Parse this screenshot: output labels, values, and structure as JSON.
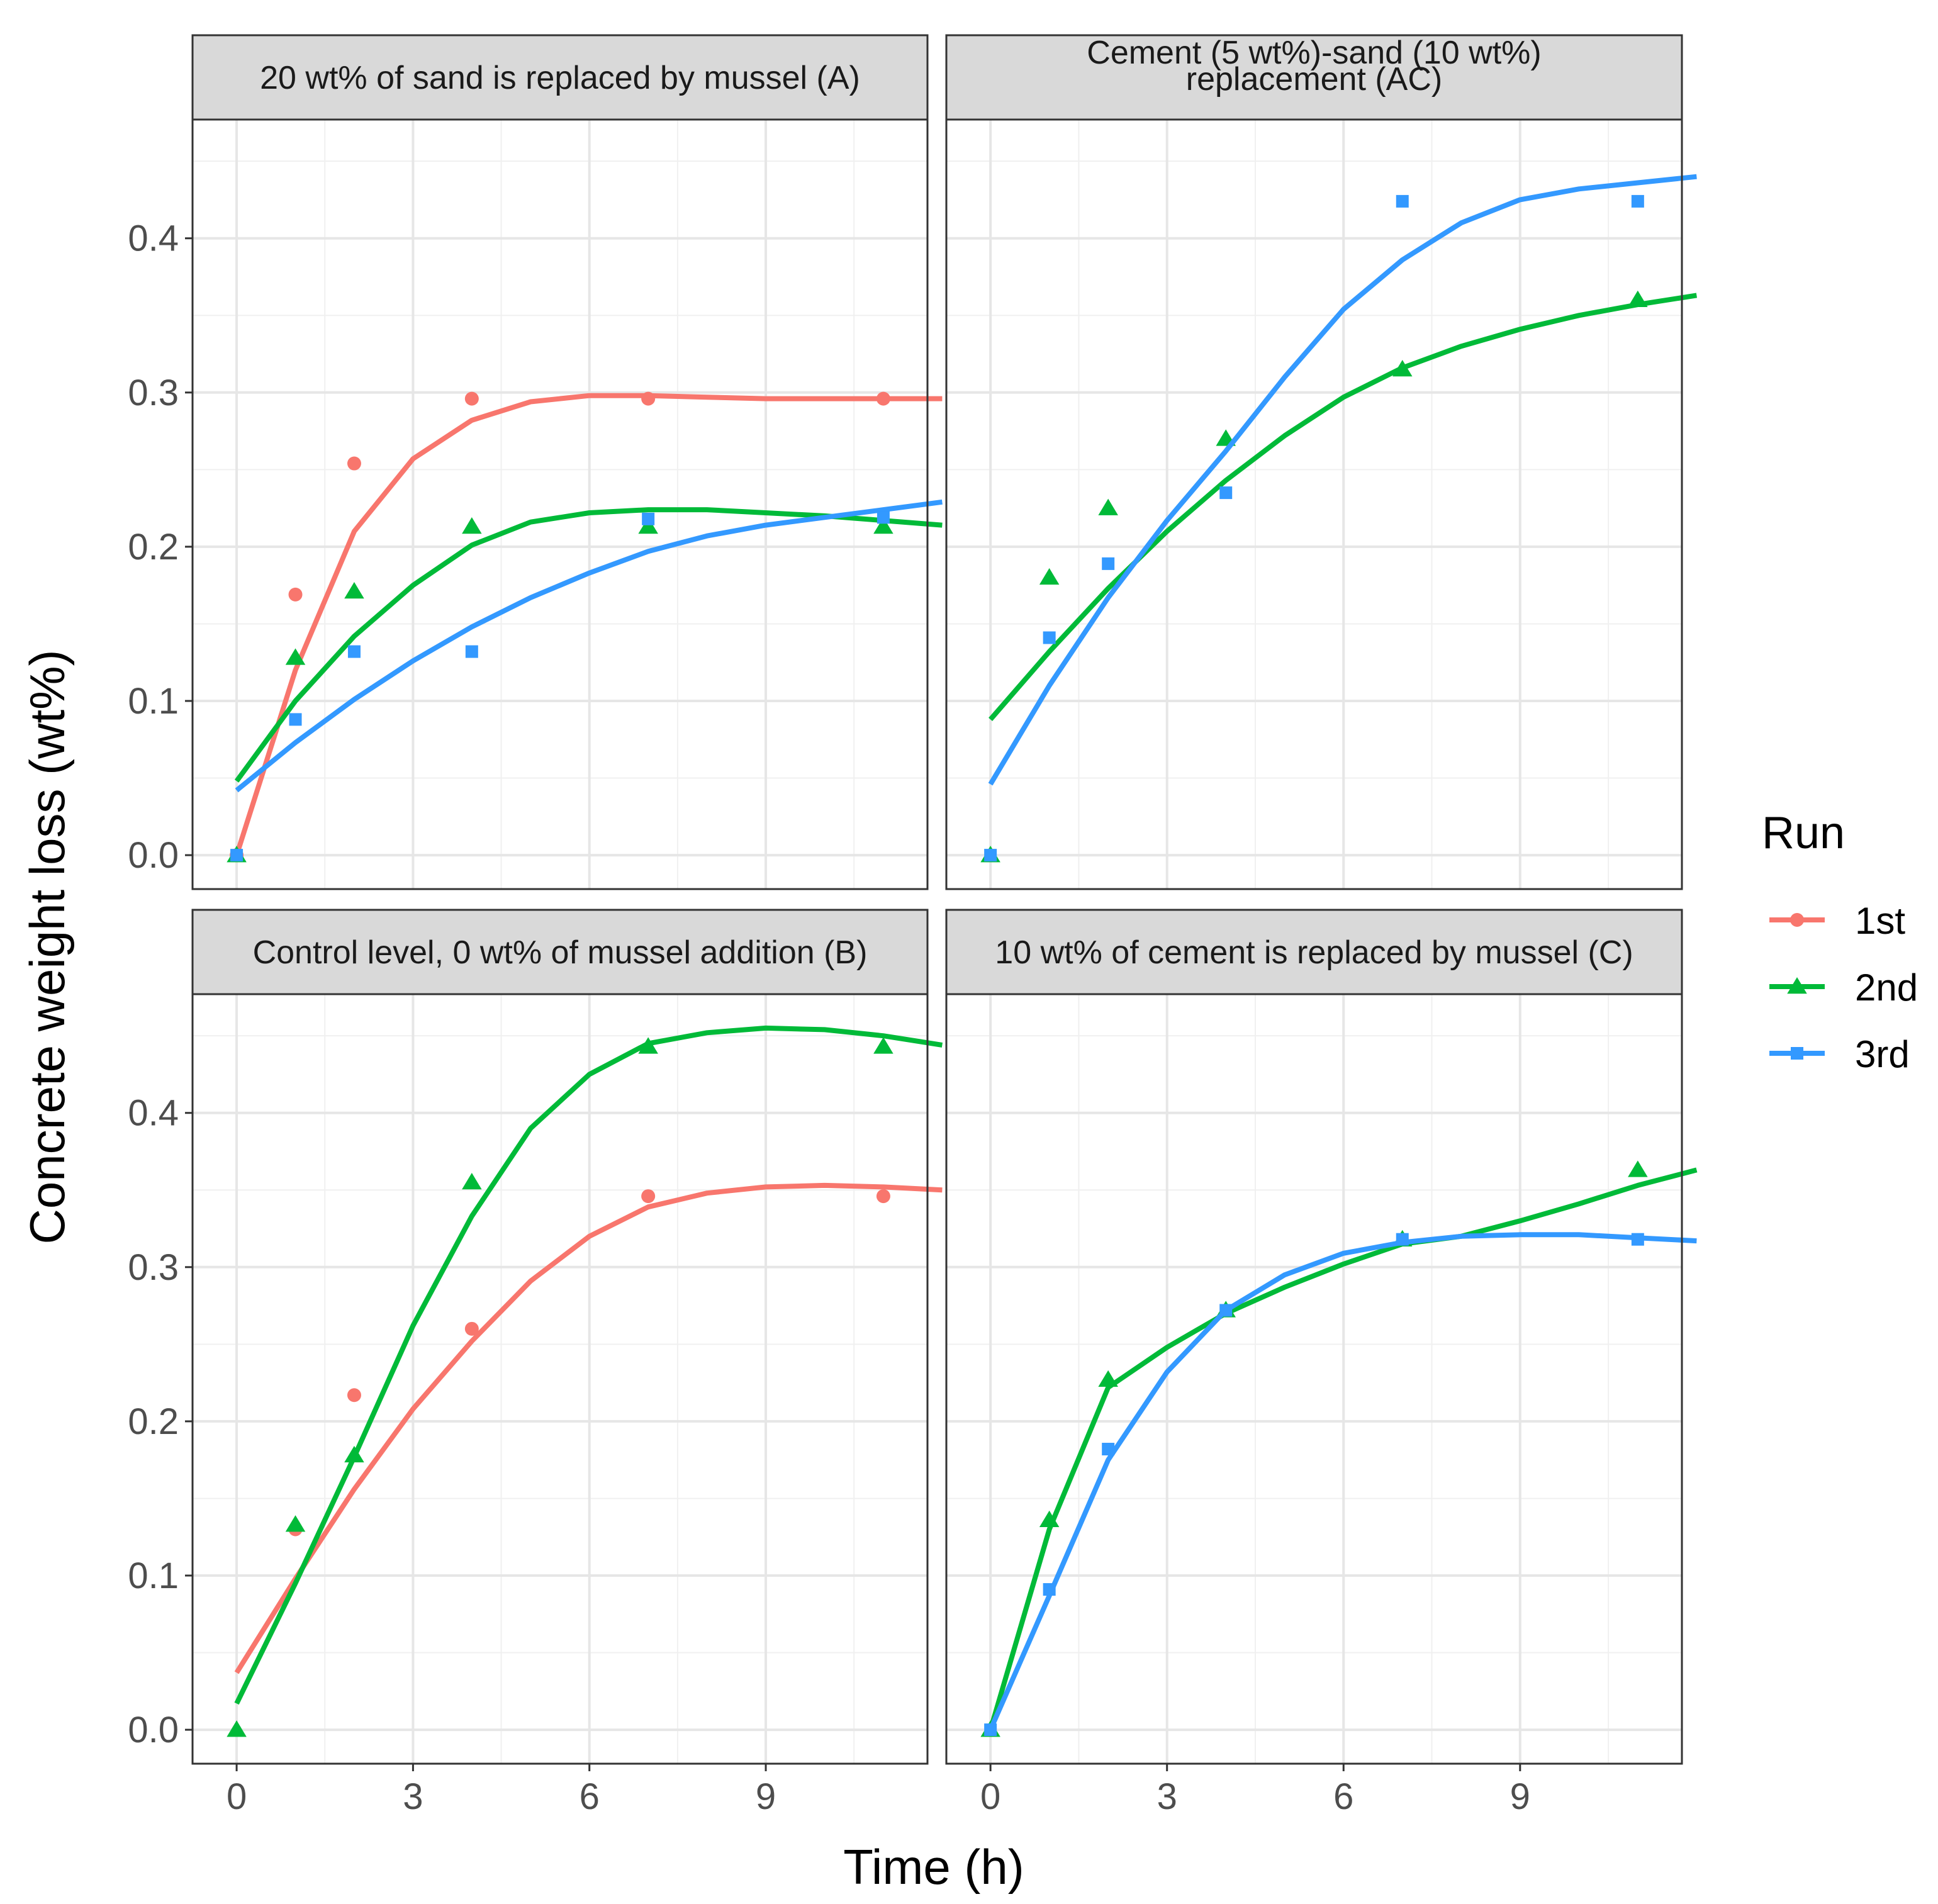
{
  "chart_data": {
    "type": "scatter",
    "xlabel": "Time (h)",
    "ylabel": "Concrete weight loss (wt%)",
    "xlim": [
      -0.75,
      11.75
    ],
    "ylim": [
      -0.022,
      0.477
    ],
    "x_ticks": [
      0,
      3,
      6,
      9
    ],
    "y_ticks": [
      0.0,
      0.1,
      0.2,
      0.3,
      0.4
    ],
    "x_tick_labels": [
      "0",
      "3",
      "6",
      "9"
    ],
    "y_tick_labels": [
      "0.0",
      "0.1",
      "0.2",
      "0.3",
      "0.4"
    ],
    "grid": true,
    "legend": {
      "title": "Run",
      "position": "right",
      "entries": [
        {
          "name": "1st",
          "color": "#F8766D",
          "shape": "circle"
        },
        {
          "name": "2nd",
          "color": "#00BA38",
          "shape": "triangle"
        },
        {
          "name": "3rd",
          "color": "#3399FF",
          "shape": "square"
        }
      ]
    },
    "panels": [
      {
        "id": "A",
        "strip": [
          "20 wt% of sand is replaced by mussel (A)"
        ],
        "series": [
          {
            "name": "1st",
            "x": [
              0,
              1,
              2,
              4,
              7,
              11
            ],
            "y": [
              0.0,
              0.169,
              0.254,
              0.296,
              0.296,
              0.296
            ],
            "fit": [
              0.0,
              0.12,
              0.21,
              0.257,
              0.282,
              0.294,
              0.298,
              0.298,
              0.297,
              0.296,
              0.296,
              0.296,
              0.296
            ]
          },
          {
            "name": "2nd",
            "x": [
              0,
              1,
              2,
              4,
              7,
              11
            ],
            "y": [
              0.0,
              0.128,
              0.171,
              0.213,
              0.213,
              0.213
            ],
            "fit": [
              0.048,
              0.1,
              0.142,
              0.175,
              0.201,
              0.216,
              0.222,
              0.224,
              0.224,
              0.222,
              0.22,
              0.217,
              0.214
            ]
          },
          {
            "name": "3rd",
            "x": [
              0,
              1,
              2,
              4,
              7,
              11
            ],
            "y": [
              0.0,
              0.088,
              0.132,
              0.132,
              0.218,
              0.219
            ],
            "fit": [
              0.042,
              0.073,
              0.101,
              0.126,
              0.148,
              0.167,
              0.183,
              0.197,
              0.207,
              0.214,
              0.219,
              0.224,
              0.229
            ]
          }
        ]
      },
      {
        "id": "AC",
        "strip": [
          "Cement (5 wt%)-sand (10 wt%)",
          "replacement (AC)"
        ],
        "series": [
          {
            "name": "2nd",
            "x": [
              0,
              1,
              2,
              4,
              7,
              11
            ],
            "y": [
              0.0,
              0.18,
              0.225,
              0.27,
              0.315,
              0.36
            ],
            "fit": [
              0.088,
              0.132,
              0.173,
              0.21,
              0.243,
              0.272,
              0.297,
              0.316,
              0.33,
              0.341,
              0.35,
              0.357,
              0.363
            ]
          },
          {
            "name": "3rd",
            "x": [
              0,
              1,
              2,
              4,
              7,
              11
            ],
            "y": [
              0.0,
              0.141,
              0.189,
              0.235,
              0.424,
              0.424
            ],
            "fit": [
              0.046,
              0.11,
              0.167,
              0.217,
              0.262,
              0.31,
              0.354,
              0.386,
              0.41,
              0.425,
              0.432,
              0.436,
              0.44
            ]
          }
        ]
      },
      {
        "id": "B",
        "strip": [
          "Control level, 0 wt% of mussel addition (B)"
        ],
        "series": [
          {
            "name": "1st",
            "x": [
              1,
              2,
              4,
              7,
              11
            ],
            "y": [
              0.13,
              0.217,
              0.26,
              0.346,
              0.346
            ],
            "fit": [
              0.037,
              0.098,
              0.156,
              0.208,
              0.252,
              0.291,
              0.32,
              0.339,
              0.348,
              0.352,
              0.353,
              0.352,
              0.35
            ]
          },
          {
            "name": "2nd",
            "x": [
              0,
              1,
              2,
              4,
              7,
              11
            ],
            "y": [
              0.0,
              0.133,
              0.178,
              0.355,
              0.443,
              0.443
            ],
            "fit": [
              0.017,
              0.095,
              0.177,
              0.262,
              0.333,
              0.39,
              0.425,
              0.445,
              0.452,
              0.455,
              0.454,
              0.45,
              0.444
            ]
          }
        ]
      },
      {
        "id": "C",
        "strip": [
          "10 wt% of cement is replaced by mussel (C)"
        ],
        "series": [
          {
            "name": "2nd",
            "x": [
              0,
              1,
              2,
              4,
              7,
              11
            ],
            "y": [
              0.0,
              0.136,
              0.227,
              0.272,
              0.318,
              0.363
            ],
            "fit": [
              0.0,
              0.13,
              0.222,
              0.248,
              0.27,
              0.287,
              0.302,
              0.315,
              0.32,
              0.33,
              0.341,
              0.353,
              0.363
            ]
          },
          {
            "name": "3rd",
            "x": [
              0,
              1,
              2,
              4,
              7,
              11
            ],
            "y": [
              0.0,
              0.091,
              0.182,
              0.272,
              0.318,
              0.318
            ],
            "fit": [
              0.0,
              0.087,
              0.175,
              0.232,
              0.272,
              0.295,
              0.309,
              0.316,
              0.32,
              0.321,
              0.321,
              0.319,
              0.317
            ]
          }
        ]
      }
    ]
  }
}
